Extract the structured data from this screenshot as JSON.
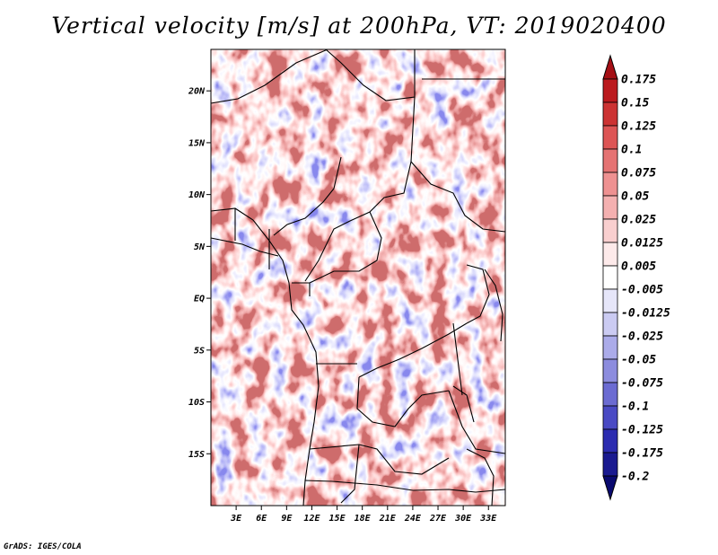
{
  "title": "Vertical velocity [m/s] at 200hPa, VT: 2019020400",
  "credit": "GrADS: IGES/COLA",
  "map": {
    "lon_range": [
      0,
      35
    ],
    "lat_range": [
      -20,
      24
    ],
    "lon_ticks": [
      "3E",
      "6E",
      "9E",
      "12E",
      "15E",
      "18E",
      "21E",
      "24E",
      "27E",
      "30E",
      "33E"
    ],
    "lat_ticks": [
      "20N",
      "15N",
      "10N",
      "5N",
      "EQ",
      "5S",
      "10S",
      "15S"
    ]
  },
  "colorbar": {
    "levels": [
      "0.175",
      "0.15",
      "0.125",
      "0.1",
      "0.075",
      "0.05",
      "0.025",
      "0.0125",
      "0.005",
      "-0.005",
      "-0.0125",
      "-0.025",
      "-0.05",
      "-0.075",
      "-0.1",
      "-0.125",
      "-0.175",
      "-0.2"
    ],
    "colors": [
      "#a50f15",
      "#bb1a1e",
      "#cc3333",
      "#dd5555",
      "#e57373",
      "#ee9191",
      "#f4b0b0",
      "#f9cfcf",
      "#fdeaea",
      "#ffffff",
      "#e6e6f9",
      "#cbcbf2",
      "#ababe9",
      "#8c8cde",
      "#6b6bd2",
      "#4a4ac4",
      "#2c2cb0",
      "#1a1a90",
      "#0a0a70"
    ]
  }
}
